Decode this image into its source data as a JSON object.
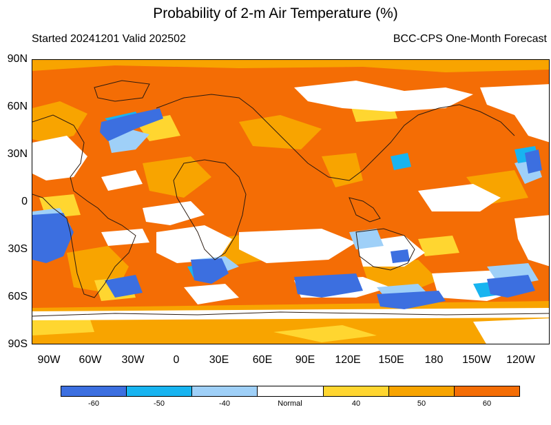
{
  "title": "Probability of 2-m Air Temperature (%)",
  "subtitle_left": "Started 20241201  Valid 202502",
  "subtitle_right": "BCC-CPS One-Month Forecast",
  "lat_labels": [
    "90N",
    "60N",
    "30N",
    "0",
    "30S",
    "60S",
    "90S"
  ],
  "lon_labels": [
    "90W",
    "60W",
    "30W",
    "0",
    "30E",
    "60E",
    "90E",
    "120E",
    "150E",
    "180",
    "150W",
    "120W"
  ],
  "legend": {
    "labels": [
      "-60",
      "-50",
      "-40",
      "Normal",
      "40",
      "50",
      "60"
    ],
    "colors": [
      "#3c6fe0",
      "#18b4f0",
      "#9fd0f8",
      "#ffffff",
      "#ffd630",
      "#f8a400",
      "#f46d05"
    ]
  }
}
